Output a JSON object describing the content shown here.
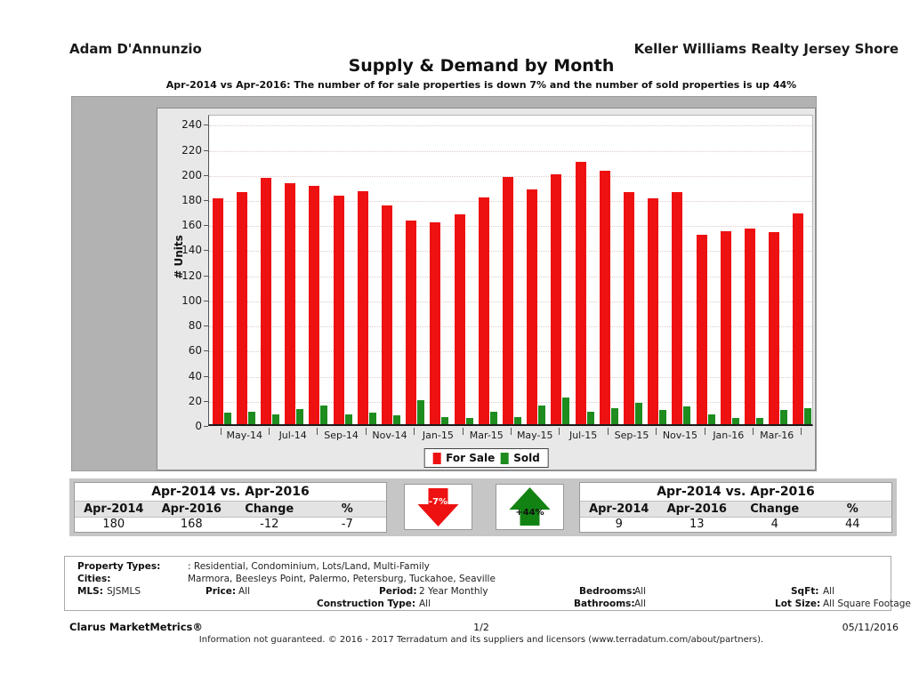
{
  "header": {
    "agent_name": "Adam D'Annunzio",
    "brokerage": "Keller Williams Realty Jersey Shore",
    "title": "Supply & Demand by Month",
    "subtitle": "Apr-2014 vs Apr-2016: The number of for sale properties is down 7% and the number of sold properties is up 44%"
  },
  "chart_data": {
    "type": "bar",
    "title": "Supply & Demand by Month",
    "ylabel": "# Units",
    "ylim": [
      0,
      240
    ],
    "ytick_step": 20,
    "grid": true,
    "legend_position": "bottom",
    "categories": [
      "Apr-14",
      "May-14",
      "Jun-14",
      "Jul-14",
      "Aug-14",
      "Sep-14",
      "Oct-14",
      "Nov-14",
      "Dec-14",
      "Jan-15",
      "Feb-15",
      "Mar-15",
      "Apr-15",
      "May-15",
      "Jun-15",
      "Jul-15",
      "Aug-15",
      "Sep-15",
      "Oct-15",
      "Nov-15",
      "Dec-15",
      "Jan-16",
      "Feb-16",
      "Mar-16",
      "Apr-16"
    ],
    "x_axis_labels_shown": [
      "May-14",
      "Jul-14",
      "Sep-14",
      "Nov-14",
      "Jan-15",
      "Mar-15",
      "May-15",
      "Jul-15",
      "Sep-15",
      "Nov-15",
      "Jan-16",
      "Mar-16"
    ],
    "series": [
      {
        "name": "For Sale",
        "color": "#ee1111",
        "values": [
          180,
          185,
          196,
          192,
          190,
          182,
          186,
          174,
          162,
          161,
          167,
          181,
          197,
          187,
          199,
          209,
          202,
          185,
          180,
          185,
          151,
          154,
          156,
          153,
          168
        ]
      },
      {
        "name": "Sold",
        "color": "#1e8c1e",
        "values": [
          9,
          10,
          8,
          12,
          15,
          8,
          9,
          7,
          19,
          6,
          5,
          10,
          6,
          15,
          21,
          10,
          13,
          17,
          11,
          14,
          8,
          5,
          5,
          11,
          13
        ]
      }
    ]
  },
  "legend": {
    "for_sale": "For Sale",
    "sold": "Sold"
  },
  "comparison_tables": {
    "left": {
      "title": "Apr-2014 vs. Apr-2016",
      "columns": [
        "Apr-2014",
        "Apr-2016",
        "Change",
        "%"
      ],
      "values": [
        "180",
        "168",
        "-12",
        "-7"
      ]
    },
    "right": {
      "title": "Apr-2014 vs. Apr-2016",
      "columns": [
        "Apr-2014",
        "Apr-2016",
        "Change",
        "%"
      ],
      "values": [
        "9",
        "13",
        "4",
        "44"
      ]
    }
  },
  "indicators": {
    "for_sale_change": {
      "label": "-7%",
      "direction": "down",
      "color": "#ee1111",
      "text_color": "#ffffff"
    },
    "sold_change": {
      "label": "+44%",
      "direction": "up",
      "color": "#128312",
      "text_color": "#111111"
    }
  },
  "filters": {
    "property_types_label": "Property Types:",
    "property_types": ": Residential, Condominium, Lots/Land, Multi-Family",
    "cities_label": "Cities:",
    "cities": "Marmora, Beesleys Point, Palermo, Petersburg, Tuckahoe, Seaville",
    "mls_label": "MLS:",
    "mls": "SJSMLS",
    "price_label": "Price:",
    "price": "All",
    "period_label": "Period:",
    "period": "2 Year Monthly",
    "construction_type_label": "Construction Type:",
    "construction_type": "All",
    "bedrooms_label": "Bedrooms:",
    "bedrooms": "All",
    "bathrooms_label": "Bathrooms:",
    "bathrooms": "All",
    "sqft_label": "SqFt:",
    "sqft": "All",
    "lot_size_label": "Lot Size:",
    "lot_size": "All Square Footage"
  },
  "footer": {
    "brand": "Clarus MarketMetrics®",
    "page": "1/2",
    "date": "05/11/2016",
    "disclaimer": "Information not guaranteed. © 2016 - 2017 Terradatum and its suppliers and licensors (www.terradatum.com/about/partners)."
  }
}
